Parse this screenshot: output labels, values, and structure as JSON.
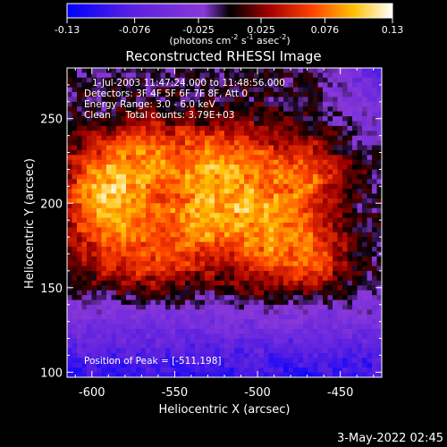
{
  "colorbar": {
    "ticks": [
      "-0.13",
      "-0.076",
      "-0.025",
      "0.025",
      "0.076",
      "0.13"
    ],
    "unit_label": "(photons cm",
    "unit_exp1": "-2",
    "unit_mid": " s",
    "unit_exp2": "-1",
    "unit_tail": " asec",
    "unit_exp3": "-2",
    "unit_close": ")"
  },
  "chart_data": {
    "type": "heatmap",
    "title": "Reconstructed RHESSI Image",
    "xlabel": "Heliocentric X (arcsec)",
    "ylabel": "Heliocentric Y (arcsec)",
    "xlim": [
      -615,
      -425
    ],
    "ylim": [
      97,
      280
    ],
    "x_ticks": [
      "-600",
      "-550",
      "-500",
      "-450"
    ],
    "y_ticks": [
      "100",
      "150",
      "200",
      "250"
    ],
    "colorscale": "rhessi-diverging",
    "vmin": -0.13,
    "vmax": 0.13,
    "annotations": [
      "1-Jul-2003 11:47:24.000 to 11:48:56.000",
      "Detectors: 3F 4F 5F 6F 7F 8F, Att 0",
      "Energy Range: 3.0 - 6.0 keV",
      "Clean     Total counts: 3.79E+03"
    ],
    "peak_label": "Position of Peak = [-511,198]",
    "peak": [
      -511,
      198
    ]
  },
  "footer": {
    "timestamp": "3-May-2022 02:45"
  }
}
